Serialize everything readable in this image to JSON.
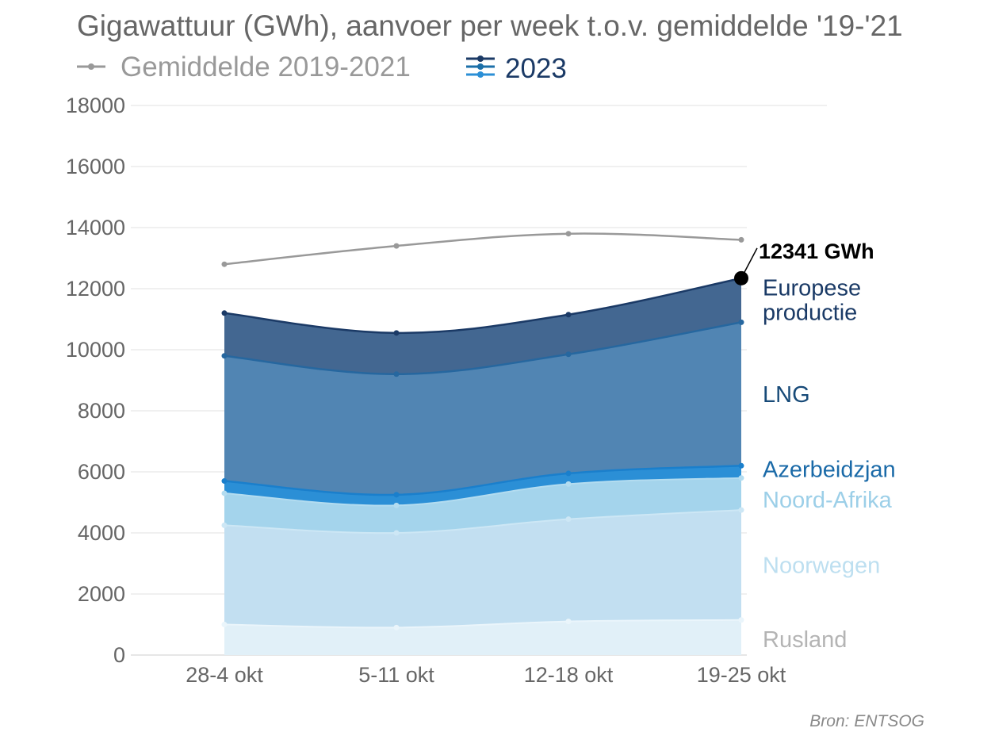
{
  "chart_data": {
    "type": "area",
    "title": "Gigawattuur (GWh), aanvoer per week t.o.v. gemiddelde '19-'21",
    "legend": [
      {
        "label": "Gemiddelde 2019-2021",
        "color": "#999999"
      },
      {
        "label": "2023",
        "color": "#1b3a66"
      }
    ],
    "categories": [
      "28-4 okt",
      "5-11 okt",
      "12-18 okt",
      "19-25 okt"
    ],
    "ylim": [
      0,
      18000
    ],
    "yticks": [
      0,
      2000,
      4000,
      6000,
      8000,
      10000,
      12000,
      14000,
      16000,
      18000
    ],
    "grid": true,
    "stacked": true,
    "series": [
      {
        "name": "Rusland",
        "values": [
          1000,
          900,
          1100,
          1150
        ],
        "color": "#e1f0f8",
        "label_color": "#b4b4b4"
      },
      {
        "name": "Noorwegen",
        "values": [
          3250,
          3100,
          3350,
          3600
        ],
        "color": "#c2dff1",
        "label_color": "#bddff0"
      },
      {
        "name": "Noord-Afrika",
        "values": [
          1050,
          900,
          1150,
          1050
        ],
        "color": "#a4d4ec",
        "label_color": "#9ccfe8"
      },
      {
        "name": "Azerbeidzjan",
        "values": [
          400,
          350,
          350,
          400
        ],
        "color": "#2b8fd6",
        "label_color": "#1a6aa8"
      },
      {
        "name": "LNG",
        "values": [
          4100,
          3950,
          3900,
          4700
        ],
        "color": "#5185b3",
        "label_color": "#174a78"
      },
      {
        "name": "Europese productie",
        "values": [
          1400,
          1350,
          1300,
          1441
        ],
        "color": "#436791",
        "label_color": "#1a3a66"
      }
    ],
    "average_line": {
      "name": "Gemiddelde 2019-2021",
      "values": [
        12800,
        13400,
        13800,
        13600
      ]
    },
    "annotation": {
      "text": "12341 GWh",
      "value": 12341
    },
    "source": "Bron: ENTSOG"
  }
}
